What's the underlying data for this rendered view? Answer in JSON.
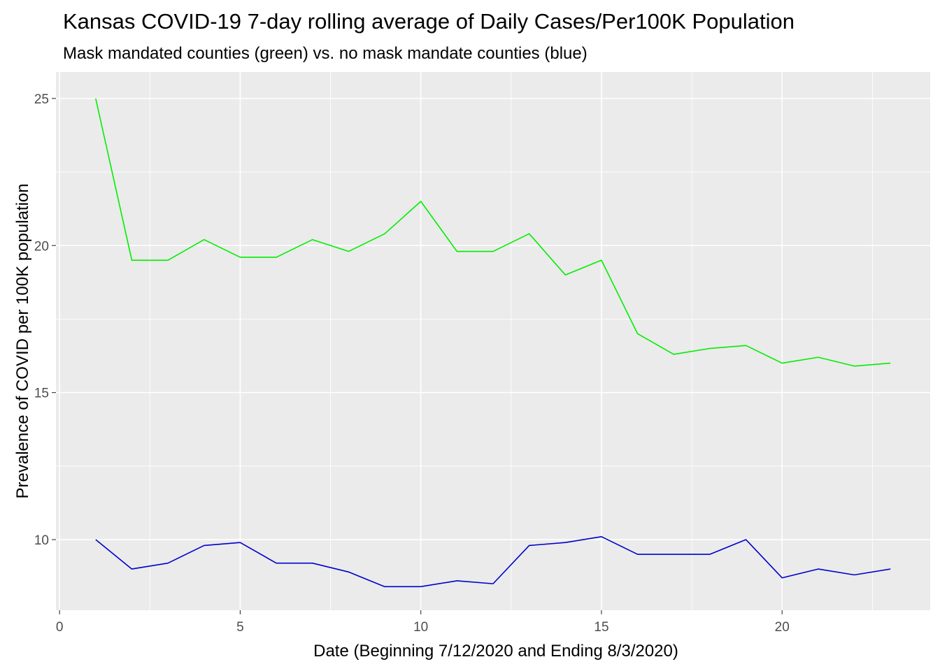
{
  "chart_data": {
    "type": "line",
    "title": "Kansas COVID-19 7-day rolling average of Daily Cases/Per100K Population",
    "subtitle": "Mask mandated counties (green) vs. no mask mandate counties (blue)",
    "xlabel": "Date (Beginning 7/12/2020 and Ending 8/3/2020)",
    "ylabel": "Prevalence of COVID per 100K population",
    "xlim": [
      -0.1,
      24.1
    ],
    "ylim": [
      7.6,
      25.9
    ],
    "x_ticks": [
      0,
      5,
      10,
      15,
      20
    ],
    "x_tick_labels": [
      "0",
      "5",
      "10",
      "15",
      "20"
    ],
    "y_ticks": [
      10,
      15,
      20,
      25
    ],
    "y_tick_labels": [
      "10",
      "15",
      "20",
      "25"
    ],
    "grid": true,
    "legend": "none",
    "x": [
      1,
      2,
      3,
      4,
      5,
      6,
      7,
      8,
      9,
      10,
      11,
      12,
      13,
      14,
      15,
      16,
      17,
      18,
      19,
      20,
      21,
      22,
      23
    ],
    "series": [
      {
        "color": "#00ee00",
        "values": [
          25.0,
          19.5,
          19.5,
          20.2,
          19.6,
          19.6,
          20.2,
          19.8,
          20.4,
          21.5,
          19.8,
          19.8,
          20.4,
          19.0,
          19.5,
          17.0,
          16.3,
          16.5,
          16.6,
          16.0,
          16.2,
          15.9,
          16.0
        ]
      },
      {
        "color": "#0000cc",
        "values": [
          10.0,
          9.0,
          9.2,
          9.8,
          9.9,
          9.2,
          9.2,
          8.9,
          8.4,
          8.4,
          8.6,
          8.5,
          9.8,
          9.9,
          10.1,
          9.5,
          9.5,
          9.5,
          10.0,
          8.7,
          9.0,
          8.8,
          9.0
        ]
      }
    ]
  }
}
